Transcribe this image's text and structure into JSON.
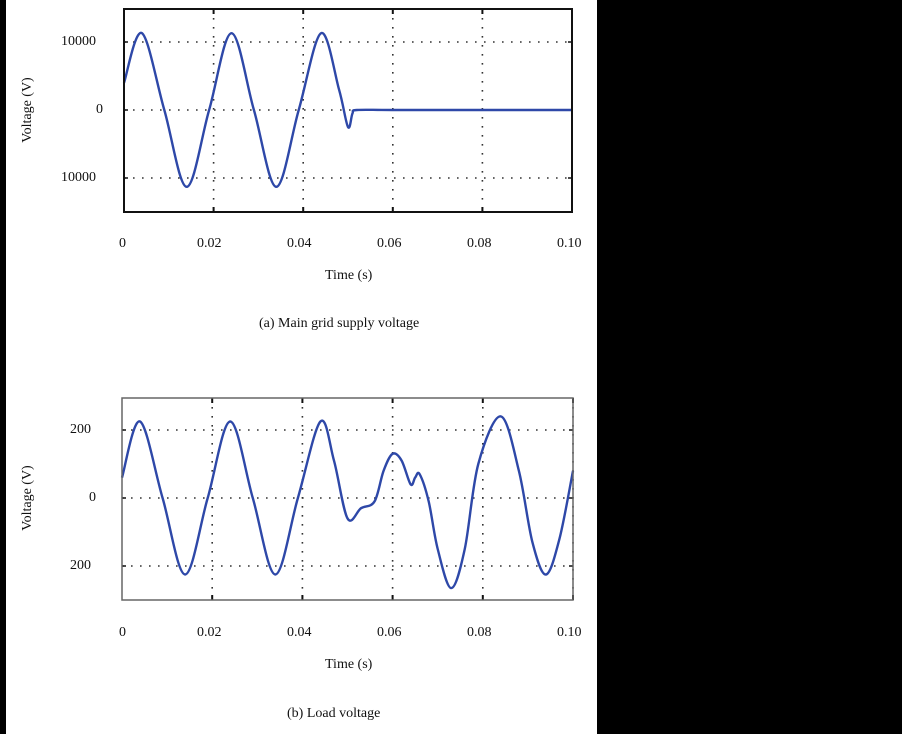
{
  "chart_data": [
    {
      "type": "line",
      "title": "",
      "caption": "(a) Main grid supply voltage",
      "xlabel": "Time (s)",
      "ylabel": "Voltage (V)",
      "xlim": [
        0,
        0.1
      ],
      "ylim": [
        -15000,
        15000
      ],
      "xticks": [
        "0",
        "0.02",
        "0.04",
        "0.06",
        "0.08",
        "0.10"
      ],
      "yticks": [
        {
          "value": 10000,
          "label": "10000"
        },
        {
          "value": 0,
          "label": "0"
        },
        {
          "value": -10000,
          "label": "10000"
        }
      ],
      "grid": true,
      "grid_style": "dotted",
      "series": [
        {
          "name": "Main grid supply voltage",
          "color": "#2e48a8",
          "description": "50 Hz sinusoid, amplitude ~11300 V, starting ~4000 V at t=0; collapses after t≈0.05 s with a small undershoot (~-2500 V) then stays at 0",
          "x": [
            0,
            0.004,
            0.009,
            0.014,
            0.019,
            0.024,
            0.029,
            0.034,
            0.039,
            0.044,
            0.048,
            0.05,
            0.051,
            0.052,
            0.06,
            0.08,
            0.1
          ],
          "y": [
            4000,
            11300,
            0,
            -11300,
            0,
            11300,
            0,
            -11300,
            0,
            11300,
            3000,
            -2500,
            -500,
            0,
            0,
            0,
            0
          ]
        }
      ]
    },
    {
      "type": "line",
      "title": "",
      "caption": "(b) Load voltage",
      "xlabel": "Time (s)",
      "ylabel": "Voltage (V)",
      "xlim": [
        0,
        0.1
      ],
      "ylim": [
        -300,
        300
      ],
      "xticks": [
        "0",
        "0.02",
        "0.04",
        "0.06",
        "0.08",
        "0.10"
      ],
      "yticks": [
        {
          "value": 200,
          "label": "200"
        },
        {
          "value": 0,
          "label": "0"
        },
        {
          "value": -200,
          "label": "200"
        }
      ],
      "grid": true,
      "grid_style": "dotted",
      "series": [
        {
          "name": "Load voltage",
          "color": "#2e48a8",
          "description": "Sinusoid ~225 V amplitude until 0.05 s; disturbance with dip to ~-60 V, rise to ~130 V at 0.06 s, notch at 0.065 s, then recovery to larger swings (-265 V at 0.073 s, +240 V at 0.084 s)",
          "x": [
            0,
            0.004,
            0.009,
            0.014,
            0.019,
            0.024,
            0.029,
            0.034,
            0.039,
            0.044,
            0.047,
            0.05,
            0.053,
            0.056,
            0.058,
            0.06,
            0.062,
            0.064,
            0.065,
            0.066,
            0.068,
            0.07,
            0.073,
            0.076,
            0.079,
            0.084,
            0.088,
            0.091,
            0.094,
            0.097,
            0.1
          ],
          "y": [
            60,
            225,
            0,
            -225,
            0,
            225,
            0,
            -225,
            0,
            225,
            110,
            -60,
            -30,
            -10,
            80,
            130,
            110,
            40,
            60,
            70,
            -10,
            -150,
            -265,
            -150,
            100,
            240,
            80,
            -130,
            -225,
            -120,
            80
          ]
        }
      ]
    }
  ],
  "figure": {
    "a": {
      "ylabel": "Voltage (V)",
      "xlabel": "Time (s)",
      "caption": "(a) Main grid supply voltage",
      "yticks": [
        "10000",
        "0",
        "10000"
      ],
      "xticks": [
        "0",
        "0.02",
        "0.04",
        "0.06",
        "0.08",
        "0.10"
      ]
    },
    "b": {
      "ylabel": "Voltage (V)",
      "xlabel": "Time (s)",
      "caption": "(b) Load voltage",
      "yticks": [
        "200",
        "0",
        "200"
      ],
      "xticks": [
        "0",
        "0.02",
        "0.04",
        "0.06",
        "0.08",
        "0.10"
      ]
    }
  },
  "colors": {
    "line": "#2e48a8",
    "axis": "#222222",
    "grid": "#333333",
    "background": "#ffffff",
    "frame": "#000000"
  }
}
